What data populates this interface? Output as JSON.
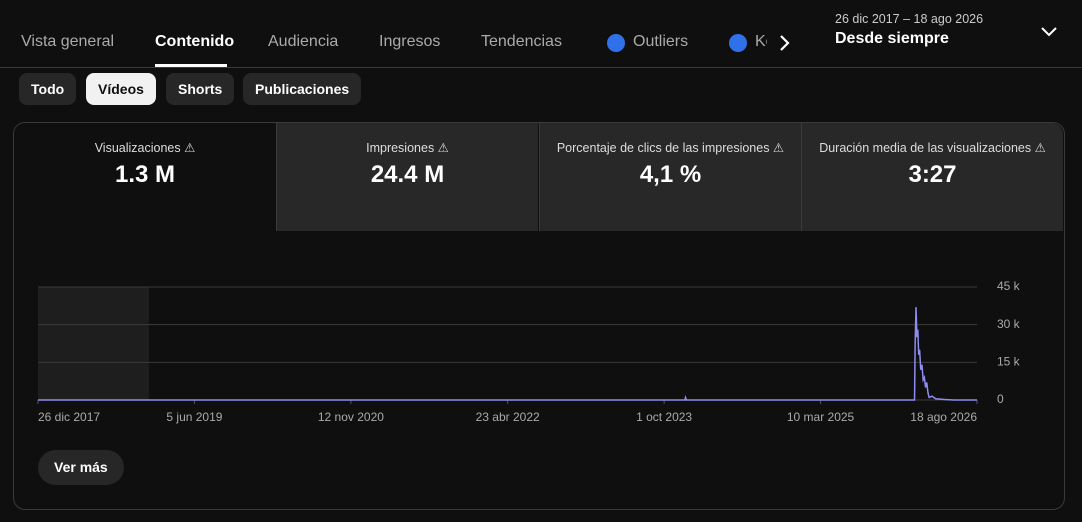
{
  "tabs": [
    "Vista general",
    "Contenido",
    "Audiencia",
    "Ingresos",
    "Tendencias",
    "Outliers",
    "Ke"
  ],
  "date_range": {
    "dates": "26 dic 2017 – 18 ago 2026",
    "label": "Desde siempre"
  },
  "filters": [
    "Todo",
    "Vídeos",
    "Shorts",
    "Publicaciones"
  ],
  "metrics": [
    {
      "label": "Visualizaciones",
      "value": "1.3 M"
    },
    {
      "label": "Impresiones",
      "value": "24.4 M"
    },
    {
      "label": "Porcentaje de clics de las impresiones",
      "value": "4,1 %"
    },
    {
      "label": "Duración media de las visualizaciones",
      "value": "3:27"
    }
  ],
  "chart_data": {
    "type": "line",
    "x": [
      "2017-12-26",
      "2019-05-20",
      "2023-12-10",
      "2023-12-12",
      "2023-12-15",
      "2026-01-20",
      "2026-01-22",
      "2026-01-25",
      "2026-01-28",
      "2026-01-31",
      "2026-02-03",
      "2026-02-06",
      "2026-02-10",
      "2026-02-14",
      "2026-02-18",
      "2026-02-22",
      "2026-02-26",
      "2026-03-02",
      "2026-03-06",
      "2026-03-10",
      "2026-03-20",
      "2026-04-01",
      "2026-05-01",
      "2026-06-01",
      "2026-08-18"
    ],
    "series": [
      {
        "name": "Visualizaciones",
        "color": "#8f8cf2",
        "values": [
          0,
          0,
          0,
          1000,
          0,
          0,
          22000,
          37000,
          25000,
          28000,
          18000,
          20000,
          12000,
          14000,
          8000,
          9000,
          5000,
          7000,
          3000,
          1000,
          1500,
          500,
          200,
          0,
          0
        ]
      }
    ],
    "xlim": [
      "2017-12-26",
      "2026-08-18"
    ],
    "xticks": [
      {
        "value": "2017-12-26",
        "label": "26 dic 2017"
      },
      {
        "value": "2019-06-05",
        "label": "5 jun 2019"
      },
      {
        "value": "2020-11-12",
        "label": "12 nov 2020"
      },
      {
        "value": "2022-04-23",
        "label": "23 abr 2022"
      },
      {
        "value": "2023-10-01",
        "label": "1 oct 2023"
      },
      {
        "value": "2025-03-10",
        "label": "10 mar 2025"
      },
      {
        "value": "2026-08-18",
        "label": "18 ago 2026"
      }
    ],
    "ylim": [
      0,
      45000
    ],
    "yticks": [
      0,
      {
        "value": 15000,
        "label": "15 k"
      },
      {
        "value": 30000,
        "label": "30 k"
      },
      {
        "value": 45000,
        "label": "45 k"
      }
    ],
    "grid": true
  },
  "button": "Ver más"
}
